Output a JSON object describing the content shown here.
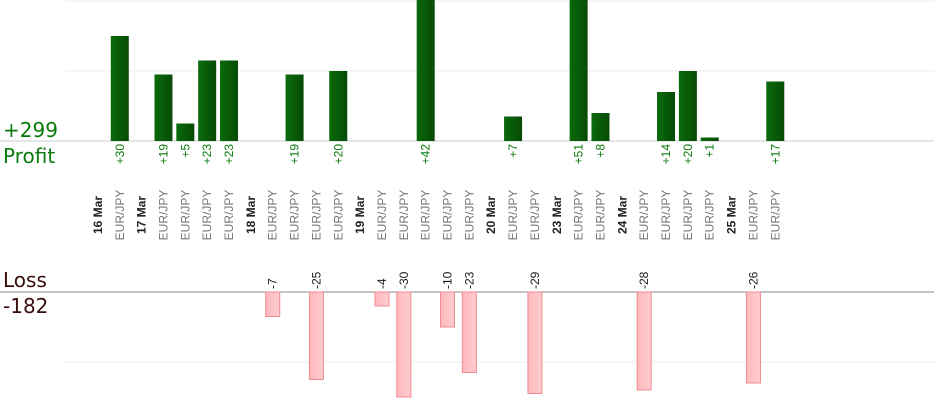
{
  "profit": {
    "total": "+299",
    "label": "Profit"
  },
  "loss": {
    "label": "Loss",
    "total": "-182"
  },
  "colors": {
    "profit_bar": "#0a6b0a",
    "profit_text": "#0a7a0a",
    "loss_bar": "#ffb8bc",
    "loss_text": "#1a1a1a",
    "date_label": "#222222",
    "pair_label": "#777777"
  },
  "chart_data": {
    "type": "bar",
    "title": "",
    "dates": [
      "16 Mar",
      "17 Mar",
      "18 Mar",
      "19 Mar",
      "20 Mar",
      "23 Mar",
      "24 Mar",
      "25 Mar"
    ],
    "trades": [
      {
        "date": "16 Mar",
        "pair": "EUR/JPY",
        "value": 30
      },
      {
        "date": "17 Mar",
        "pair": "EUR/JPY",
        "value": 19
      },
      {
        "date": "17 Mar",
        "pair": "EUR/JPY",
        "value": 5
      },
      {
        "date": "17 Mar",
        "pair": "EUR/JPY",
        "value": 23
      },
      {
        "date": "17 Mar",
        "pair": "EUR/JPY",
        "value": 23
      },
      {
        "date": "18 Mar",
        "pair": "EUR/JPY",
        "value": -7
      },
      {
        "date": "18 Mar",
        "pair": "EUR/JPY",
        "value": 19
      },
      {
        "date": "18 Mar",
        "pair": "EUR/JPY",
        "value": -25
      },
      {
        "date": "18 Mar",
        "pair": "EUR/JPY",
        "value": 20
      },
      {
        "date": "19 Mar",
        "pair": "EUR/JPY",
        "value": -4
      },
      {
        "date": "19 Mar",
        "pair": "EUR/JPY",
        "value": -30
      },
      {
        "date": "19 Mar",
        "pair": "EUR/JPY",
        "value": 42
      },
      {
        "date": "19 Mar",
        "pair": "EUR/JPY",
        "value": -10
      },
      {
        "date": "19 Mar",
        "pair": "EUR/JPY",
        "value": -23
      },
      {
        "date": "20 Mar",
        "pair": "EUR/JPY",
        "value": 7
      },
      {
        "date": "20 Mar",
        "pair": "EUR/JPY",
        "value": -29
      },
      {
        "date": "23 Mar",
        "pair": "EUR/JPY",
        "value": 51
      },
      {
        "date": "23 Mar",
        "pair": "EUR/JPY",
        "value": 8
      },
      {
        "date": "24 Mar",
        "pair": "EUR/JPY",
        "value": -28
      },
      {
        "date": "24 Mar",
        "pair": "EUR/JPY",
        "value": 14
      },
      {
        "date": "24 Mar",
        "pair": "EUR/JPY",
        "value": 20
      },
      {
        "date": "24 Mar",
        "pair": "EUR/JPY",
        "value": 1
      },
      {
        "date": "25 Mar",
        "pair": "EUR/JPY",
        "value": -26
      },
      {
        "date": "25 Mar",
        "pair": "EUR/JPY",
        "value": 17
      }
    ],
    "profit_ylim": [
      0,
      20
    ],
    "loss_ylim": [
      0,
      20
    ],
    "grid": true
  }
}
